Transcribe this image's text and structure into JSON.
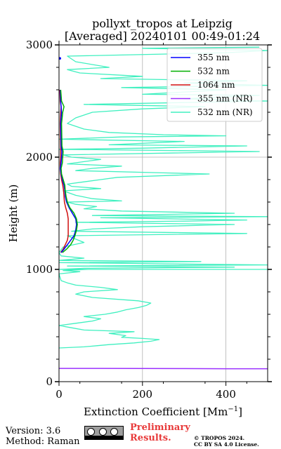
{
  "chart_data": {
    "type": "line",
    "title": [
      "pollyxt_tropos at Leipzig",
      "[Averaged] 20240101 00:49-01:24"
    ],
    "xlabel": "Extinction Coefficient [Mm",
    "xlabel_sup": "−1",
    "xlabel_end": "]",
    "ylabel": "Height (m)",
    "xlim": [
      0,
      500
    ],
    "ylim": [
      0,
      3000
    ],
    "xticks": [
      0,
      200,
      400
    ],
    "yticks": [
      0,
      1000,
      2000,
      3000
    ],
    "grid": true,
    "legend_position": "top-right",
    "series": [
      {
        "name": "355 nm",
        "color": "#0000ff",
        "points": [
          [
            5,
            1150
          ],
          [
            12,
            1180
          ],
          [
            20,
            1220
          ],
          [
            28,
            1260
          ],
          [
            36,
            1300
          ],
          [
            40,
            1350
          ],
          [
            42,
            1400
          ],
          [
            40,
            1450
          ],
          [
            32,
            1500
          ],
          [
            24,
            1550
          ],
          [
            18,
            1600
          ],
          [
            15,
            1650
          ],
          [
            14,
            1700
          ],
          [
            12,
            1750
          ],
          [
            8,
            1800
          ],
          [
            5,
            1850
          ],
          [
            3,
            1900
          ],
          [
            5,
            1950
          ],
          [
            6,
            2000
          ],
          [
            7,
            2050
          ],
          [
            5,
            2100
          ],
          [
            4,
            2300
          ],
          [
            6,
            2400
          ],
          [
            4,
            2500
          ],
          [
            3,
            2600
          ]
        ]
      },
      {
        "name": "532 nm",
        "color": "#00b000",
        "points": [
          [
            8,
            1150
          ],
          [
            18,
            1180
          ],
          [
            28,
            1220
          ],
          [
            34,
            1260
          ],
          [
            38,
            1300
          ],
          [
            42,
            1350
          ],
          [
            44,
            1400
          ],
          [
            42,
            1450
          ],
          [
            36,
            1500
          ],
          [
            26,
            1550
          ],
          [
            20,
            1600
          ],
          [
            17,
            1650
          ],
          [
            15,
            1700
          ],
          [
            14,
            1750
          ],
          [
            10,
            1800
          ],
          [
            6,
            1850
          ],
          [
            5,
            1900
          ],
          [
            8,
            1950
          ],
          [
            9,
            2000
          ],
          [
            10,
            2050
          ],
          [
            7,
            2100
          ],
          [
            6,
            2300
          ],
          [
            9,
            2400
          ],
          [
            12,
            2450
          ],
          [
            6,
            2500
          ],
          [
            4,
            2600
          ]
        ]
      },
      {
        "name": "1064 nm",
        "color": "#d01010",
        "points": [
          [
            4,
            1150
          ],
          [
            10,
            1180
          ],
          [
            15,
            1220
          ],
          [
            20,
            1260
          ],
          [
            22,
            1300
          ],
          [
            22,
            1350
          ],
          [
            22,
            1400
          ],
          [
            22,
            1450
          ],
          [
            20,
            1500
          ],
          [
            16,
            1550
          ],
          [
            13,
            1600
          ],
          [
            12,
            1650
          ],
          [
            11,
            1700
          ],
          [
            9,
            1750
          ],
          [
            6,
            1800
          ],
          [
            4,
            1850
          ],
          [
            3,
            1900
          ],
          [
            3,
            1950
          ],
          [
            4,
            2000
          ],
          [
            4,
            2100
          ],
          [
            3,
            2300
          ],
          [
            4,
            2400
          ],
          [
            5,
            2450
          ],
          [
            3,
            2500
          ],
          [
            2,
            2600
          ]
        ]
      },
      {
        "name": "355 nm (NR)",
        "color": "#9b30ff",
        "points": [
          [
            0,
            118
          ],
          [
            100,
            118
          ],
          [
            200,
            117
          ],
          [
            300,
            116
          ],
          [
            400,
            115
          ],
          [
            500,
            115
          ]
        ]
      },
      {
        "name": "532 nm (NR)",
        "color": "#40f0c0",
        "points": [
          [
            0,
            300
          ],
          [
            60,
            310
          ],
          [
            90,
            320
          ],
          [
            120,
            330
          ],
          [
            180,
            345
          ],
          [
            220,
            360
          ],
          [
            240,
            375
          ],
          [
            200,
            385
          ],
          [
            150,
            395
          ],
          [
            160,
            410
          ],
          [
            120,
            430
          ],
          [
            180,
            445
          ],
          [
            60,
            460
          ],
          [
            30,
            480
          ],
          [
            0,
            500
          ],
          [
            40,
            520
          ],
          [
            80,
            540
          ],
          [
            100,
            560
          ],
          [
            60,
            580
          ],
          [
            110,
            600
          ],
          [
            140,
            620
          ],
          [
            160,
            640
          ],
          [
            190,
            660
          ],
          [
            210,
            680
          ],
          [
            220,
            700
          ],
          [
            190,
            720
          ],
          [
            80,
            750
          ],
          [
            40,
            780
          ],
          [
            60,
            800
          ],
          [
            140,
            820
          ],
          [
            100,
            840
          ],
          [
            40,
            860
          ],
          [
            20,
            880
          ],
          [
            5,
            900
          ],
          [
            0,
            960
          ],
          [
            50,
            980
          ],
          [
            10,
            990
          ],
          [
            70,
            1000
          ],
          [
            500,
            1000
          ],
          [
            0,
            1000
          ],
          [
            60,
            1010
          ],
          [
            420,
            1020
          ],
          [
            20,
            1030
          ],
          [
            500,
            1040
          ],
          [
            0,
            1060
          ],
          [
            340,
            1070
          ],
          [
            0,
            1080
          ],
          [
            60,
            1100
          ],
          [
            5,
            1120
          ],
          [
            0,
            1150
          ],
          [
            10,
            1200
          ],
          [
            60,
            1240
          ],
          [
            20,
            1300
          ],
          [
            450,
            1320
          ],
          [
            30,
            1340
          ],
          [
            80,
            1360
          ],
          [
            200,
            1380
          ],
          [
            420,
            1400
          ],
          [
            40,
            1420
          ],
          [
            300,
            1430
          ],
          [
            450,
            1440
          ],
          [
            100,
            1460
          ],
          [
            500,
            1470
          ],
          [
            80,
            1480
          ],
          [
            420,
            1500
          ],
          [
            150,
            1520
          ],
          [
            60,
            1540
          ],
          [
            90,
            1560
          ],
          [
            40,
            1580
          ],
          [
            20,
            1600
          ],
          [
            150,
            1610
          ],
          [
            80,
            1630
          ],
          [
            40,
            1660
          ],
          [
            10,
            1700
          ],
          [
            100,
            1720
          ],
          [
            30,
            1740
          ],
          [
            20,
            1760
          ],
          [
            60,
            1780
          ],
          [
            100,
            1800
          ],
          [
            140,
            1820
          ],
          [
            360,
            1850
          ],
          [
            250,
            1860
          ],
          [
            40,
            1880
          ],
          [
            80,
            1900
          ],
          [
            150,
            1920
          ],
          [
            20,
            1940
          ],
          [
            60,
            1960
          ],
          [
            100,
            1980
          ],
          [
            30,
            2000
          ],
          [
            10,
            2020
          ],
          [
            480,
            2050
          ],
          [
            0,
            2070
          ],
          [
            200,
            2080
          ],
          [
            450,
            2100
          ],
          [
            120,
            2110
          ],
          [
            300,
            2140
          ],
          [
            0,
            2160
          ],
          [
            150,
            2180
          ],
          [
            400,
            2190
          ],
          [
            250,
            2200
          ],
          [
            120,
            2220
          ],
          [
            60,
            2250
          ],
          [
            20,
            2300
          ],
          [
            40,
            2350
          ],
          [
            80,
            2400
          ],
          [
            200,
            2430
          ],
          [
            350,
            2450
          ],
          [
            60,
            2470
          ],
          [
            500,
            2500
          ],
          [
            300,
            2520
          ],
          [
            480,
            2550
          ],
          [
            200,
            2560
          ],
          [
            400,
            2600
          ],
          [
            150,
            2620
          ],
          [
            500,
            2640
          ],
          [
            300,
            2660
          ],
          [
            450,
            2680
          ],
          [
            100,
            2700
          ],
          [
            200,
            2720
          ],
          [
            50,
            2750
          ],
          [
            20,
            2780
          ],
          [
            120,
            2800
          ],
          [
            40,
            2850
          ],
          [
            20,
            2900
          ],
          [
            400,
            2930
          ],
          [
            500,
            2950
          ],
          [
            200,
            2970
          ],
          [
            480,
            2980
          ]
        ]
      }
    ]
  },
  "footer": {
    "version": "Version: 3.6",
    "method": "Method: Raman",
    "preliminary_1": "Preliminary",
    "preliminary_2": "Results.",
    "copyright_1": "© TROPOS 2024.",
    "copyright_2": "CC BY SA 4.0 License."
  }
}
